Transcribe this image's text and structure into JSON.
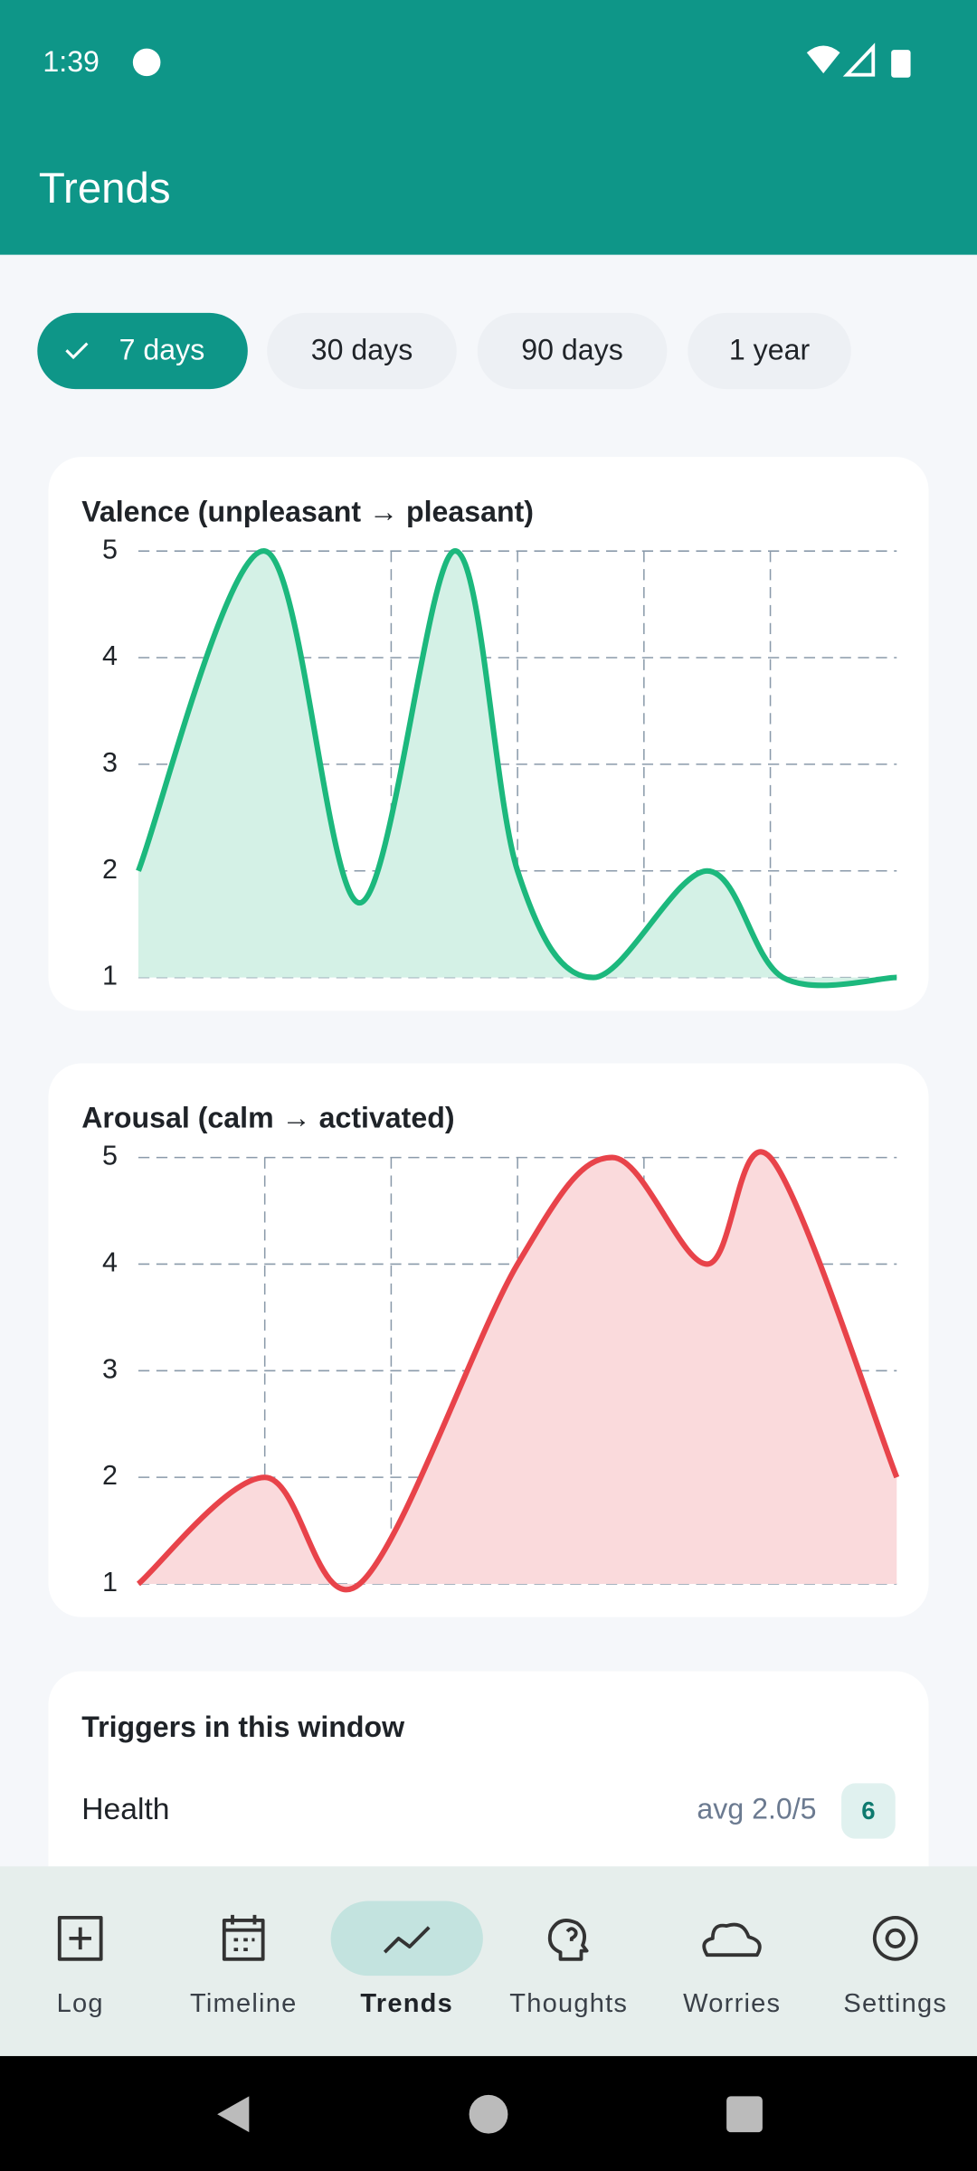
{
  "status_bar": {
    "time": "1:39"
  },
  "app_bar": {
    "title": "Trends"
  },
  "filters": [
    {
      "label": "7 days",
      "selected": true
    },
    {
      "label": "30 days",
      "selected": false
    },
    {
      "label": "90 days",
      "selected": false
    },
    {
      "label": "1 year",
      "selected": false
    }
  ],
  "chart_data": [
    {
      "type": "line",
      "title": "Valence (unpleasant → pleasant)",
      "x": [
        0,
        1,
        1.75,
        2.5,
        3,
        3.6,
        4.5,
        5.1,
        6
      ],
      "values": [
        2,
        5,
        1.7,
        5,
        2,
        1,
        2,
        1,
        1
      ],
      "color": "#1cb87d",
      "fill": "#d4f1e6",
      "xlim": [
        0,
        6
      ],
      "xticks": [
        1,
        2,
        3,
        4,
        5
      ],
      "ylim": [
        1,
        5
      ],
      "yticks": [
        1,
        2,
        3,
        4,
        5
      ],
      "grid": true
    },
    {
      "type": "line",
      "title": "Arousal (calm → activated)",
      "x": [
        0,
        1,
        1.75,
        3,
        3.75,
        4.5,
        5,
        6
      ],
      "values": [
        1,
        2,
        1,
        4,
        5,
        4,
        5,
        2
      ],
      "color": "#e8434a",
      "fill": "#fadadc",
      "xlim": [
        0,
        6
      ],
      "xticks": [
        1,
        2,
        3,
        4,
        5
      ],
      "ylim": [
        1,
        5
      ],
      "yticks": [
        1,
        2,
        3,
        4,
        5
      ],
      "grid": true
    }
  ],
  "triggers": {
    "title": "Triggers in this window",
    "items": [
      {
        "name": "Health",
        "avg": "avg 2.0/5",
        "count": 6
      }
    ]
  },
  "nav": [
    {
      "label": "Log",
      "selected": false
    },
    {
      "label": "Timeline",
      "selected": false
    },
    {
      "label": "Trends",
      "selected": true
    },
    {
      "label": "Thoughts",
      "selected": false
    },
    {
      "label": "Worries",
      "selected": false
    },
    {
      "label": "Settings",
      "selected": false
    }
  ]
}
